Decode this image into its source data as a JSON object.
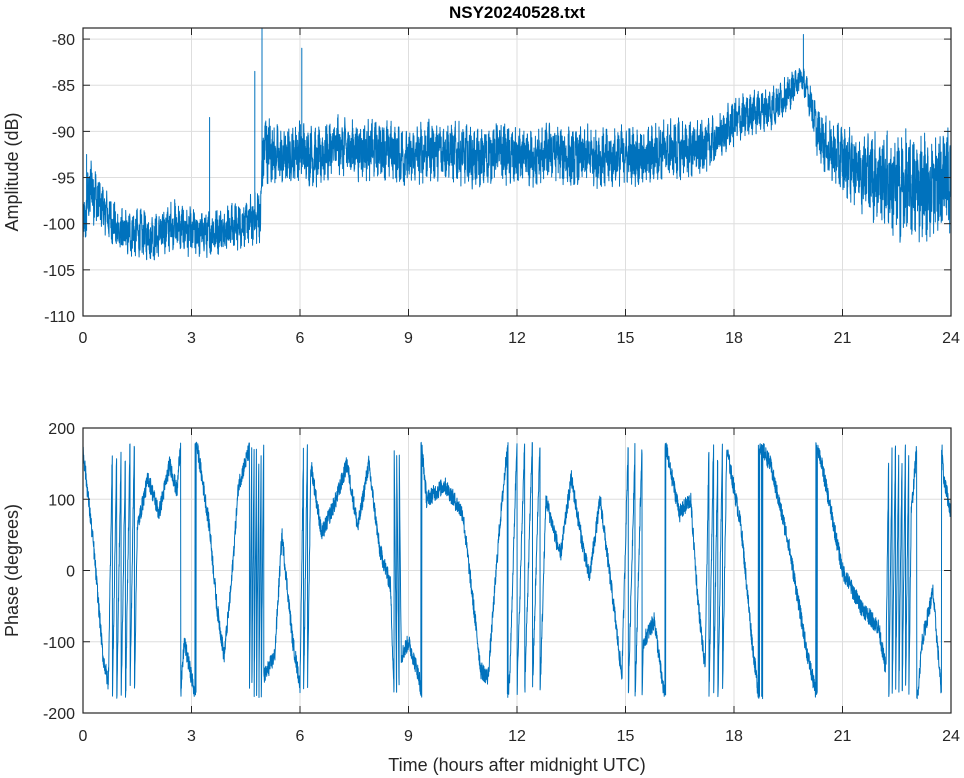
{
  "title": "NSY20240528.txt",
  "chart_data": [
    {
      "type": "line",
      "title": "NSY20240528.txt",
      "xlabel": "",
      "ylabel": "Amplitude (dB)",
      "xlim": [
        0,
        24
      ],
      "ylim": [
        -110,
        -78.8
      ],
      "xticks": [
        0,
        3,
        6,
        9,
        12,
        15,
        18,
        21,
        24
      ],
      "xtick_labels": [
        "0",
        "3",
        "6",
        "9",
        "12",
        "15",
        "18",
        "21",
        "24"
      ],
      "yticks": [
        -110,
        -105,
        -100,
        -95,
        -90,
        -85,
        -80
      ],
      "ytick_labels": [
        "-110",
        "-105",
        "-100",
        "-95",
        "-90",
        "-85",
        "-80"
      ],
      "grid": true,
      "color": "#0072BD",
      "baseline": {
        "t": [
          0,
          0.2,
          0.5,
          1,
          1.5,
          2,
          2.5,
          3,
          3.5,
          4,
          4.5,
          4.9,
          5.0,
          5.5,
          6,
          6.5,
          7,
          7.5,
          8,
          8.5,
          9,
          9.5,
          10,
          10.5,
          11,
          11.5,
          12,
          12.5,
          13,
          13.5,
          14,
          14.5,
          15,
          15.5,
          16,
          16.5,
          17,
          17.5,
          18,
          18.5,
          19,
          19.5,
          19.85,
          20.1,
          20.3,
          20.6,
          21,
          21.5,
          22,
          22.5,
          23,
          23.5,
          24
        ],
        "value": [
          -101,
          -96,
          -98,
          -101,
          -101,
          -101.5,
          -100,
          -101,
          -101,
          -100.5,
          -100,
          -99,
          -91.5,
          -93,
          -92,
          -93,
          -91.5,
          -92,
          -92,
          -92,
          -93,
          -92,
          -92,
          -92.5,
          -93,
          -92,
          -93,
          -93,
          -92,
          -93,
          -92.5,
          -93,
          -92.5,
          -93,
          -92,
          -92,
          -92,
          -91,
          -89,
          -88,
          -87.5,
          -86,
          -84,
          -86.5,
          -90,
          -92,
          -93,
          -94,
          -95,
          -96,
          -96,
          -96,
          -95
        ],
        "noise": [
          2,
          3,
          2,
          2,
          2,
          2,
          2,
          2,
          2,
          2,
          2,
          2.5,
          3,
          2.5,
          2.5,
          2.5,
          2.5,
          2.5,
          2.5,
          2.5,
          2.5,
          2.5,
          2.5,
          2.5,
          2.5,
          2.5,
          2.5,
          2.5,
          2.5,
          2.5,
          2.5,
          2.5,
          2.5,
          2.5,
          2.5,
          2.5,
          2.5,
          2,
          2,
          1.8,
          1.8,
          1.5,
          1.2,
          1.5,
          2,
          2.5,
          3,
          3.5,
          4,
          4.5,
          4.5,
          4.5,
          4.5
        ]
      },
      "spikes": [
        [
          0.1,
          -92.5
        ],
        [
          3.5,
          -88.5
        ],
        [
          4.75,
          -83.5
        ],
        [
          4.95,
          -78.8
        ],
        [
          6.05,
          -81
        ],
        [
          19.92,
          -79.5
        ]
      ]
    },
    {
      "type": "line",
      "title": "",
      "xlabel": "Time (hours after midnight UTC)",
      "ylabel": "Phase (degrees)",
      "xlim": [
        0,
        24
      ],
      "ylim": [
        -200,
        200
      ],
      "xticks": [
        0,
        3,
        6,
        9,
        12,
        15,
        18,
        21,
        24
      ],
      "xtick_labels": [
        "0",
        "3",
        "6",
        "9",
        "12",
        "15",
        "18",
        "21",
        "24"
      ],
      "yticks": [
        -200,
        -100,
        0,
        100,
        200
      ],
      "ytick_labels": [
        "-200",
        "-100",
        "0",
        "100",
        "200"
      ],
      "grid": true,
      "color": "#0072BD",
      "wrap": [
        -180,
        180
      ],
      "control_points": [
        [
          0,
          170,
          0
        ],
        [
          0.3,
          30,
          0
        ],
        [
          0.55,
          -120,
          0
        ],
        [
          0.7,
          -160,
          0
        ],
        [
          1.5,
          60,
          7
        ],
        [
          1.8,
          130,
          0
        ],
        [
          2.1,
          80,
          0
        ],
        [
          2.4,
          150,
          0
        ],
        [
          2.6,
          110,
          0
        ],
        [
          2.8,
          -100,
          0
        ],
        [
          3.0,
          -150,
          0
        ],
        [
          3.2,
          160,
          0
        ],
        [
          3.5,
          60,
          0
        ],
        [
          3.7,
          -50,
          0
        ],
        [
          3.9,
          -120,
          0
        ],
        [
          4.1,
          -20,
          0
        ],
        [
          4.3,
          120,
          0
        ],
        [
          4.6,
          170,
          0
        ],
        [
          5.0,
          -150,
          6
        ],
        [
          5.3,
          -120,
          0
        ],
        [
          5.5,
          50,
          0
        ],
        [
          5.8,
          -100,
          0
        ],
        [
          6.0,
          -160,
          0
        ],
        [
          6.3,
          150,
          3
        ],
        [
          6.6,
          50,
          0
        ],
        [
          7.0,
          100,
          0
        ],
        [
          7.3,
          150,
          0
        ],
        [
          7.6,
          60,
          0
        ],
        [
          7.9,
          150,
          0
        ],
        [
          8.2,
          30,
          0
        ],
        [
          8.5,
          -20,
          0
        ],
        [
          8.6,
          -170,
          0
        ],
        [
          8.8,
          -120,
          -3
        ],
        [
          9.0,
          -100,
          0
        ],
        [
          9.3,
          -150,
          0
        ],
        [
          9.5,
          100,
          0
        ],
        [
          10.0,
          120,
          0
        ],
        [
          10.5,
          80,
          0
        ],
        [
          10.8,
          -50,
          0
        ],
        [
          11.0,
          -140,
          0
        ],
        [
          11.2,
          -150,
          0
        ],
        [
          11.5,
          50,
          1
        ],
        [
          11.8,
          -150,
          0
        ],
        [
          12.8,
          100,
          5
        ],
        [
          13.2,
          20,
          0
        ],
        [
          13.5,
          130,
          0
        ],
        [
          13.8,
          40,
          0
        ],
        [
          14.0,
          -10,
          0
        ],
        [
          14.3,
          100,
          0
        ],
        [
          14.7,
          -60,
          0
        ],
        [
          14.9,
          -150,
          0
        ],
        [
          15.5,
          -100,
          3
        ],
        [
          15.8,
          -70,
          0
        ],
        [
          16.0,
          -150,
          0
        ],
        [
          16.2,
          150,
          0
        ],
        [
          16.5,
          80,
          0
        ],
        [
          16.8,
          100,
          0
        ],
        [
          17.0,
          -40,
          0
        ],
        [
          17.2,
          -140,
          0
        ],
        [
          17.8,
          170,
          5
        ],
        [
          18.2,
          60,
          0
        ],
        [
          18.5,
          -100,
          0
        ],
        [
          18.69,
          -179,
          0
        ],
        [
          18.7,
          179,
          0
        ],
        [
          19.0,
          150,
          0
        ],
        [
          19.5,
          40,
          0
        ],
        [
          20.0,
          -110,
          0
        ],
        [
          20.29,
          -179,
          0
        ],
        [
          20.3,
          179,
          0
        ],
        [
          20.5,
          130,
          0
        ],
        [
          21.0,
          0,
          0
        ],
        [
          21.5,
          -50,
          0
        ],
        [
          22.0,
          -80,
          0
        ],
        [
          22.2,
          -140,
          0
        ],
        [
          22.9,
          80,
          8
        ],
        [
          23.2,
          -100,
          0
        ],
        [
          23.5,
          -30,
          0
        ],
        [
          23.7,
          -150,
          0
        ],
        [
          23.8,
          130,
          0
        ],
        [
          24,
          80,
          0
        ]
      ]
    }
  ]
}
